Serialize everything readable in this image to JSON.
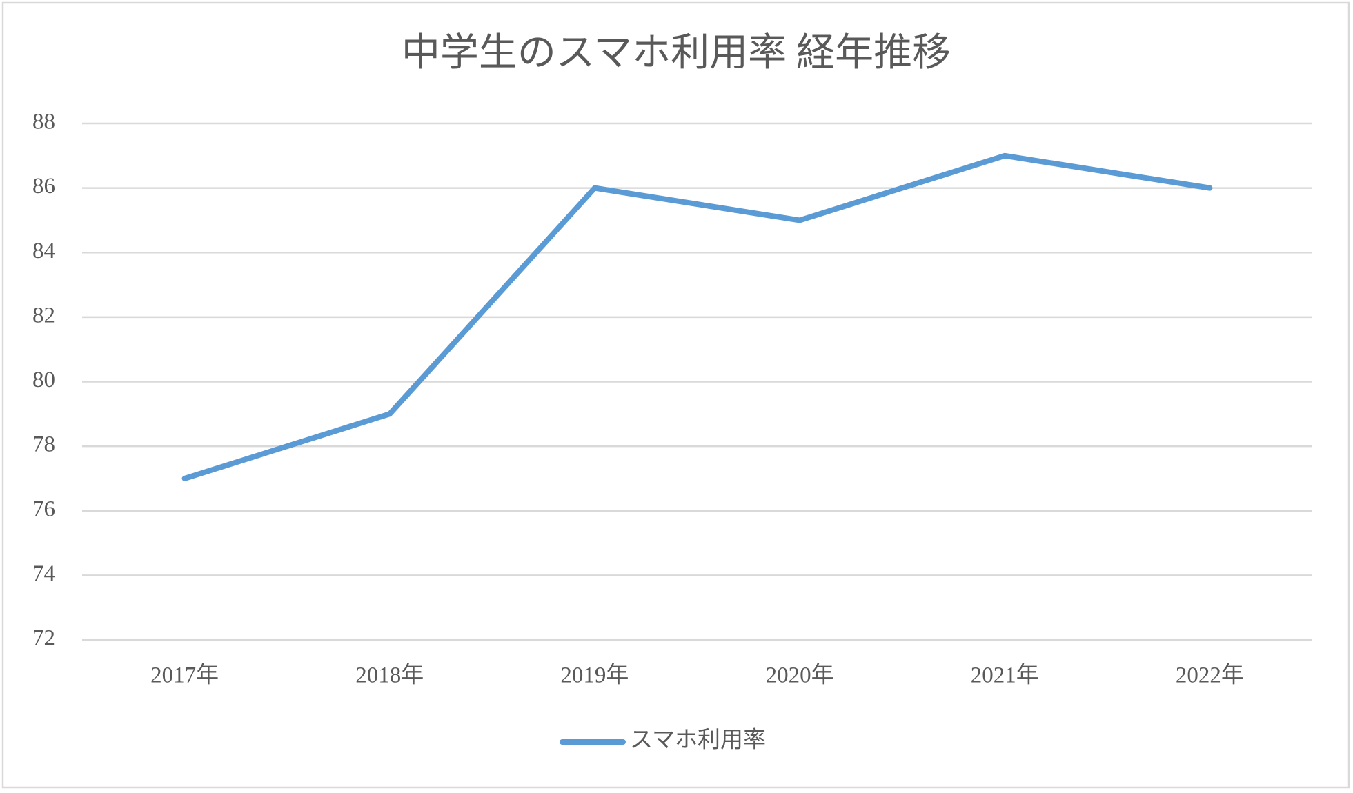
{
  "chart_data": {
    "type": "line",
    "title": "中学生のスマホ利用率 経年推移",
    "categories": [
      "2017年",
      "2018年",
      "2019年",
      "2020年",
      "2021年",
      "2022年"
    ],
    "series": [
      {
        "name": "スマホ利用率",
        "color": "#5b9bd5",
        "values": [
          77,
          79,
          86,
          85,
          87,
          86
        ]
      }
    ],
    "ylim": [
      72,
      88
    ],
    "yticks": [
      72,
      74,
      76,
      78,
      80,
      82,
      84,
      86,
      88
    ],
    "grid": true,
    "legend": "bottom"
  }
}
